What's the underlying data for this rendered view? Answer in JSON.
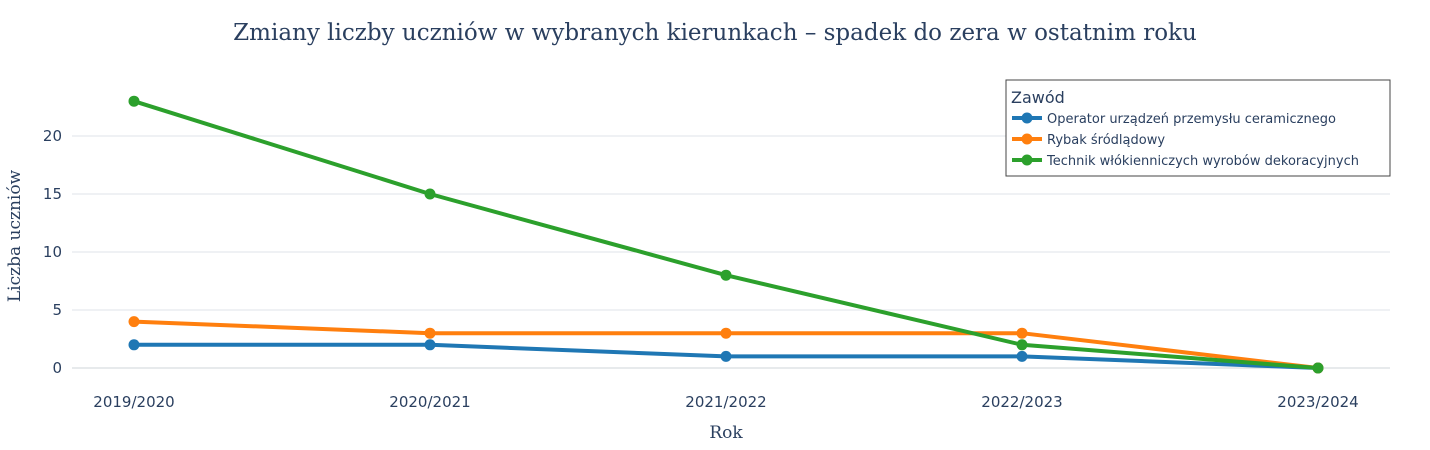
{
  "chart_data": {
    "type": "line",
    "title": "Zmiany liczby uczniów w wybranych kierunkach – spadek do zera w ostatnim roku",
    "xlabel": "Rok",
    "ylabel": "Liczba uczniów",
    "categories": [
      "2019/2020",
      "2020/2021",
      "2021/2022",
      "2022/2023",
      "2023/2024"
    ],
    "ylim": [
      -2,
      25
    ],
    "yticks": [
      0,
      5,
      10,
      15,
      20
    ],
    "grid": true,
    "legend": {
      "title": "Zawód",
      "position": "top-right"
    },
    "series": [
      {
        "name": "Operator urządzeń przemysłu ceramicznego",
        "color": "#1f77b4",
        "values": [
          2,
          2,
          1,
          1,
          0
        ]
      },
      {
        "name": "Rybak śródlądowy",
        "color": "#ff7f0e",
        "values": [
          4,
          3,
          3,
          3,
          0
        ]
      },
      {
        "name": "Technik włókienniczych wyrobów dekoracyjnych",
        "color": "#2ca02c",
        "values": [
          23,
          15,
          8,
          2,
          0
        ]
      }
    ]
  }
}
